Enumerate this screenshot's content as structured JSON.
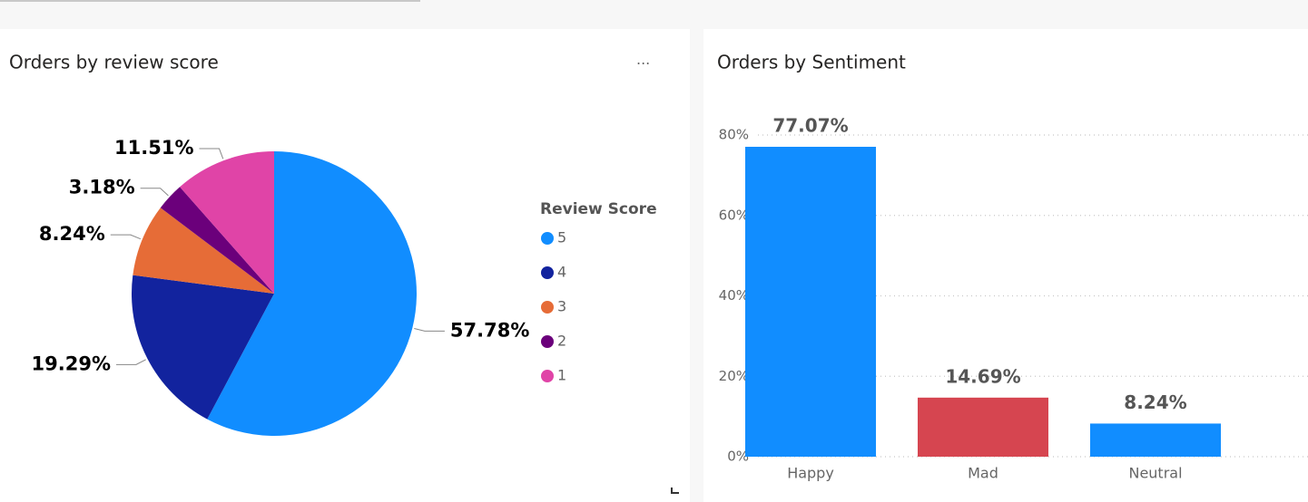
{
  "chart_data": [
    {
      "type": "pie",
      "title": "Orders by review score",
      "legend_title": "Review Score",
      "categories": [
        "5",
        "4",
        "3",
        "2",
        "1"
      ],
      "values": [
        57.78,
        19.29,
        8.24,
        3.18,
        11.51
      ],
      "value_labels": [
        "57.78%",
        "19.29%",
        "8.24%",
        "3.18%",
        "11.51%"
      ],
      "colors": [
        "#118DFF",
        "#12239E",
        "#E66C37",
        "#6B007B",
        "#E044A7"
      ],
      "legend": "right"
    },
    {
      "type": "bar",
      "title": "Orders by Sentiment",
      "categories": [
        "Happy",
        "Mad",
        "Neutral"
      ],
      "values": [
        77.07,
        14.69,
        8.24
      ],
      "value_labels": [
        "77.07%",
        "14.69%",
        "8.24%"
      ],
      "colors": [
        "#118DFF",
        "#D64550",
        "#118DFF"
      ],
      "ylim": [
        0,
        85
      ],
      "yticks": [
        {
          "value": 0,
          "label": "0%"
        },
        {
          "value": 20,
          "label": "20%"
        },
        {
          "value": 40,
          "label": "40%"
        },
        {
          "value": 60,
          "label": "60%"
        },
        {
          "value": 80,
          "label": "80%"
        }
      ],
      "grid": true
    }
  ]
}
